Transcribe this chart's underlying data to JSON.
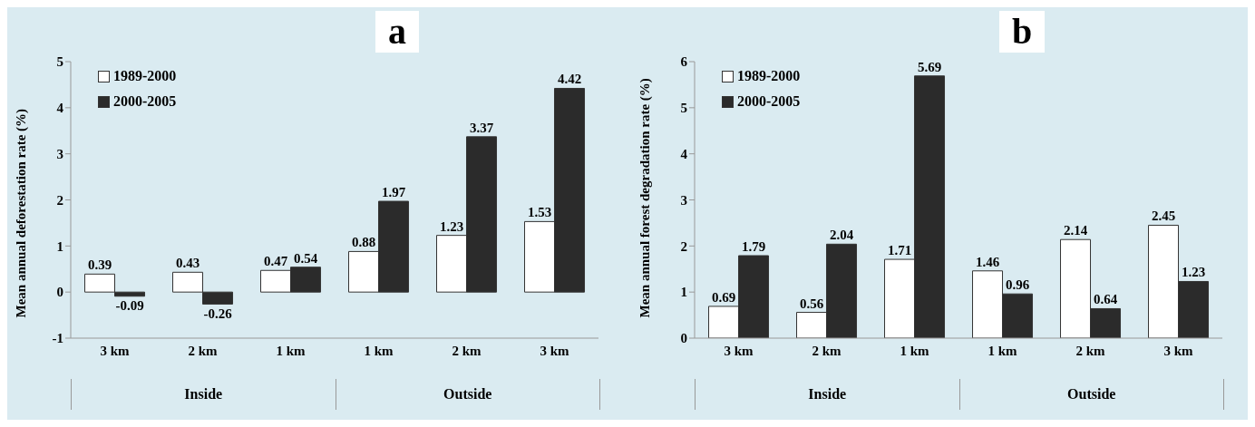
{
  "chart_data": [
    {
      "type": "bar",
      "title": "a",
      "ylabel": "Mean annual deforestation rate (%)",
      "categories": [
        "3 km",
        "2 km",
        "1 km",
        "1 km",
        "2 km",
        "3 km"
      ],
      "series": [
        {
          "name": "1989-2000",
          "color": "#ffffff",
          "values": [
            0.39,
            0.43,
            0.47,
            0.88,
            1.23,
            1.53
          ]
        },
        {
          "name": "2000-2005",
          "color": "#2b2b2b",
          "values": [
            -0.09,
            -0.26,
            0.54,
            1.97,
            3.37,
            4.42
          ]
        }
      ],
      "ylim": [
        -1,
        5
      ],
      "yticks": [
        -1,
        0,
        1,
        2,
        3,
        4,
        5
      ],
      "grid": false,
      "legend": "top left",
      "data_labels": true,
      "annotations": [
        "Inside",
        "Outside"
      ]
    },
    {
      "type": "bar",
      "title": "b",
      "ylabel": "Mean annual forest degradation rate (%)",
      "categories": [
        "3 km",
        "2 km",
        "1 km",
        "1 km",
        "2 km",
        "3 km"
      ],
      "series": [
        {
          "name": "1989-2000",
          "color": "#ffffff",
          "values": [
            0.69,
            0.56,
            1.71,
            1.46,
            2.14,
            2.45
          ]
        },
        {
          "name": "2000-2005",
          "color": "#2b2b2b",
          "values": [
            1.79,
            2.04,
            5.69,
            0.96,
            0.64,
            1.23
          ]
        }
      ],
      "ylim": [
        0,
        6
      ],
      "yticks": [
        0,
        1,
        2,
        3,
        4,
        5,
        6
      ],
      "grid": false,
      "legend": "top left",
      "data_labels": true,
      "annotations": [
        "Inside",
        "Outside"
      ]
    }
  ]
}
